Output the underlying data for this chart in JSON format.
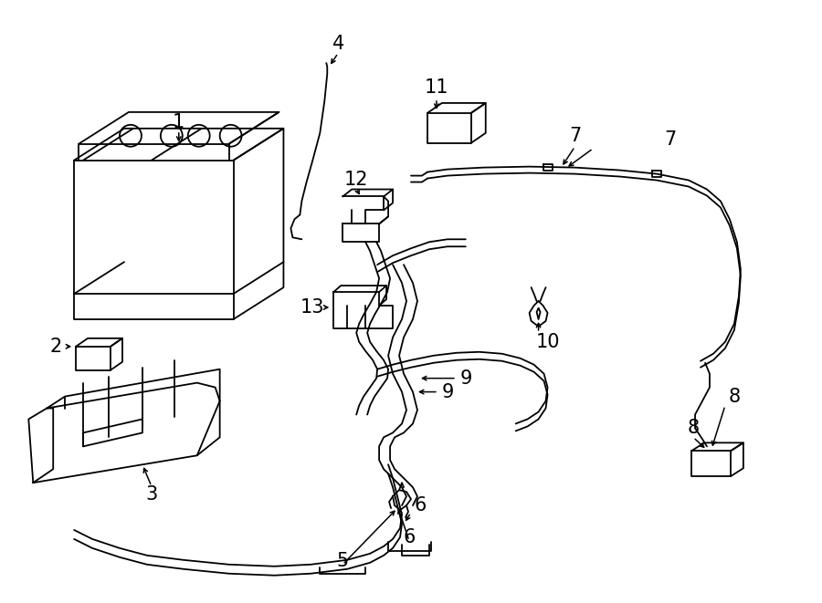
{
  "bg_color": "#ffffff",
  "line_color": "#000000",
  "lw": 1.3,
  "figsize": [
    9.0,
    6.61
  ],
  "dpi": 100
}
